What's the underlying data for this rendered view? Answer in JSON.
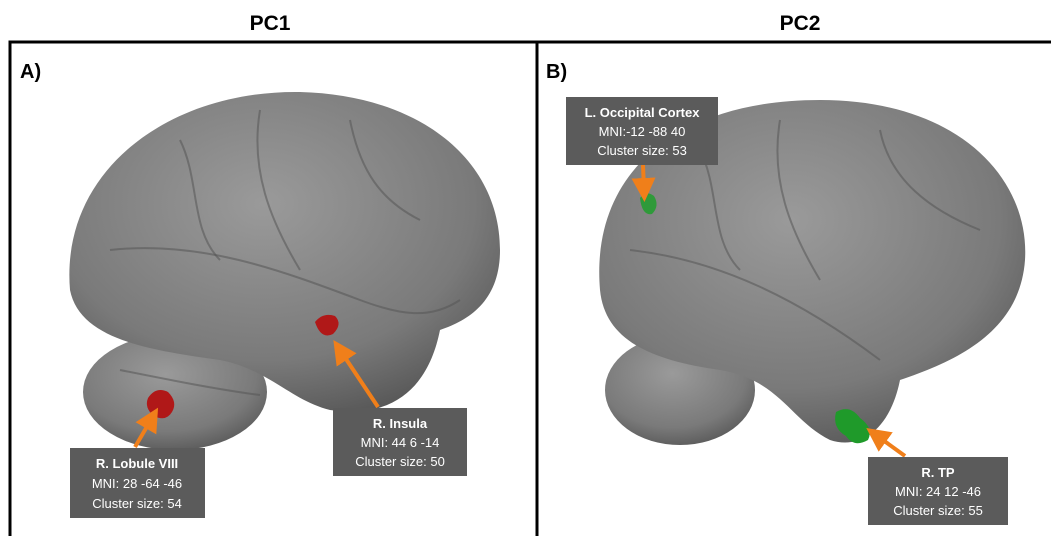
{
  "panels": [
    {
      "header": "PC1",
      "label": "A)",
      "annotations": [
        {
          "lines": [
            "R. Lobule VIII",
            "MNI: 28 -64 -46",
            "Cluster size: 54"
          ]
        },
        {
          "lines": [
            "R. Insula",
            "MNI: 44 6 -14",
            "Cluster size: 50"
          ]
        }
      ]
    },
    {
      "header": "PC2",
      "label": "B)",
      "annotations": [
        {
          "lines": [
            "L. Occipital Cortex",
            "MNI:-12 -88 40",
            "Cluster size: 53"
          ]
        },
        {
          "lines": [
            "R. TP",
            "MNI: 24 12 -46",
            "Cluster size: 55"
          ]
        }
      ]
    }
  ]
}
